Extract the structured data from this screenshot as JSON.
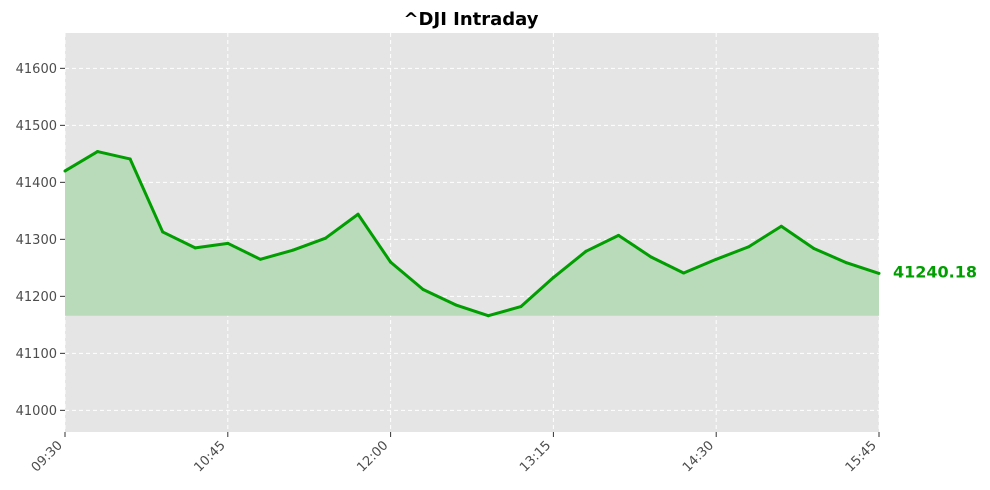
{
  "chart_data": {
    "type": "area",
    "title": "^DJI Intraday",
    "xlabel": "",
    "ylabel": "",
    "x_start": "09:30",
    "x_step_minutes": 15,
    "x": [
      "09:30",
      "09:45",
      "10:00",
      "10:15",
      "10:30",
      "10:45",
      "11:00",
      "11:15",
      "11:30",
      "11:45",
      "12:00",
      "12:15",
      "12:30",
      "12:45",
      "13:00",
      "13:15",
      "13:30",
      "13:45",
      "14:00",
      "14:15",
      "14:30",
      "14:45",
      "15:00",
      "15:15",
      "15:30",
      "15:45"
    ],
    "values": [
      41420,
      41454,
      41441,
      41313,
      41285,
      41293,
      41265,
      41281,
      41302,
      41344,
      41260,
      41212,
      41185,
      41166,
      41182,
      41233,
      41279,
      41307,
      41269,
      41241,
      41265,
      41287,
      41323,
      41284,
      41259,
      41240.18
    ],
    "fill_baseline": 41166,
    "xticks": [
      "09:30",
      "10:45",
      "12:00",
      "13:15",
      "14:30",
      "15:45"
    ],
    "yticks": [
      41000,
      41100,
      41200,
      41300,
      41400,
      41500,
      41600
    ],
    "ylim": [
      40962,
      41662
    ],
    "grid": true,
    "last_value_label": "41240.18",
    "colors": {
      "line": "#009e00",
      "fill": "#b9dbb9",
      "plot_bg": "#e5e5e5",
      "grid": "#ffffff",
      "last_label": "#009e00"
    }
  }
}
